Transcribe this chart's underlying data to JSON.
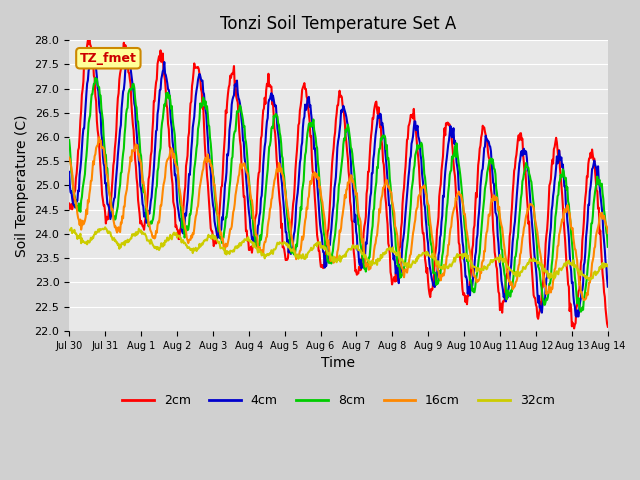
{
  "title": "Tonzi Soil Temperature Set A",
  "xlabel": "Time",
  "ylabel": "Soil Temperature (C)",
  "ylim": [
    22.0,
    28.0
  ],
  "yticks": [
    22.0,
    22.5,
    23.0,
    23.5,
    24.0,
    24.5,
    25.0,
    25.5,
    26.0,
    26.5,
    27.0,
    27.5,
    28.0
  ],
  "bg_color": "#e8e8e8",
  "plot_bg_color": "#e8e8e8",
  "line_colors": {
    "2cm": "#ff0000",
    "4cm": "#0000cc",
    "8cm": "#00cc00",
    "16cm": "#ff8800",
    "32cm": "#cccc00"
  },
  "annotation_text": "TZ_fmet",
  "annotation_bg": "#ffff99",
  "annotation_border": "#cc8800",
  "annotation_text_color": "#cc0000",
  "legend_labels": [
    "2cm",
    "4cm",
    "8cm",
    "16cm",
    "32cm"
  ],
  "x_tick_labels": [
    "Jul 30",
    "Jul 31",
    "Aug 1",
    "Aug 2",
    "Aug 3",
    "Aug 4",
    "Aug 5",
    "Aug 6",
    "Aug 7",
    "Aug 8",
    "Aug 9",
    "Aug 10",
    "Aug 11",
    "Aug 12",
    "Aug 13",
    "Aug 14"
  ],
  "num_days": 15,
  "start_day": 0,
  "figsize": [
    6.4,
    4.8
  ],
  "dpi": 100
}
